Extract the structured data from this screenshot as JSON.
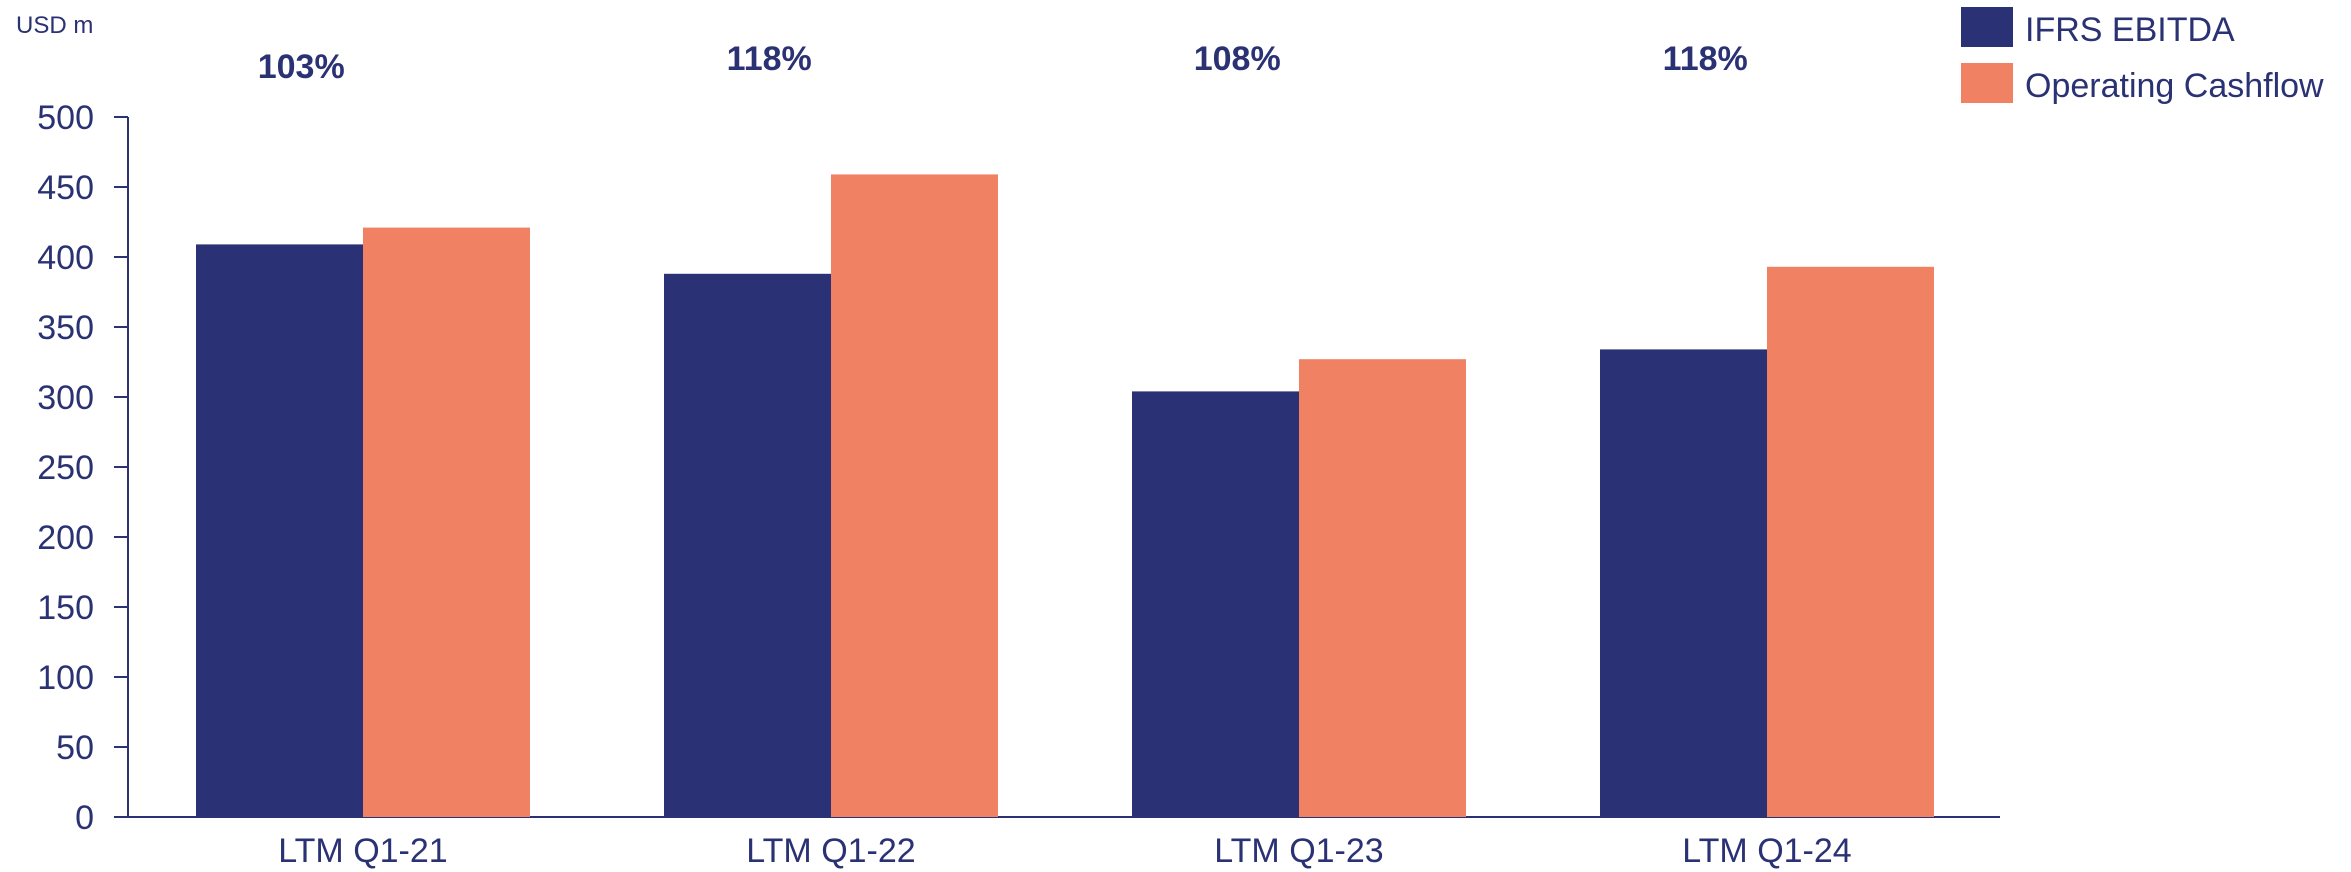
{
  "chart_data": {
    "type": "bar",
    "unit_label": "USD m",
    "categories": [
      "LTM Q1-21",
      "LTM Q1-22",
      "LTM Q1-23",
      "LTM Q1-24"
    ],
    "series": [
      {
        "name": "IFRS EBITDA",
        "color": "#2b3175",
        "values": [
          409,
          388,
          304,
          334
        ]
      },
      {
        "name": "Operating Cashflow",
        "color": "#f08263",
        "values": [
          421,
          459,
          327,
          393
        ]
      }
    ],
    "annotations": [
      "103%",
      "118%",
      "108%",
      "118%"
    ],
    "y_ticks": [
      "0",
      "50",
      "100",
      "150",
      "200",
      "250",
      "300",
      "350",
      "400",
      "450",
      "500"
    ],
    "ylim": [
      0,
      500
    ],
    "grid": false,
    "legend_position": "top-right",
    "axis_color": "#2a3274"
  }
}
